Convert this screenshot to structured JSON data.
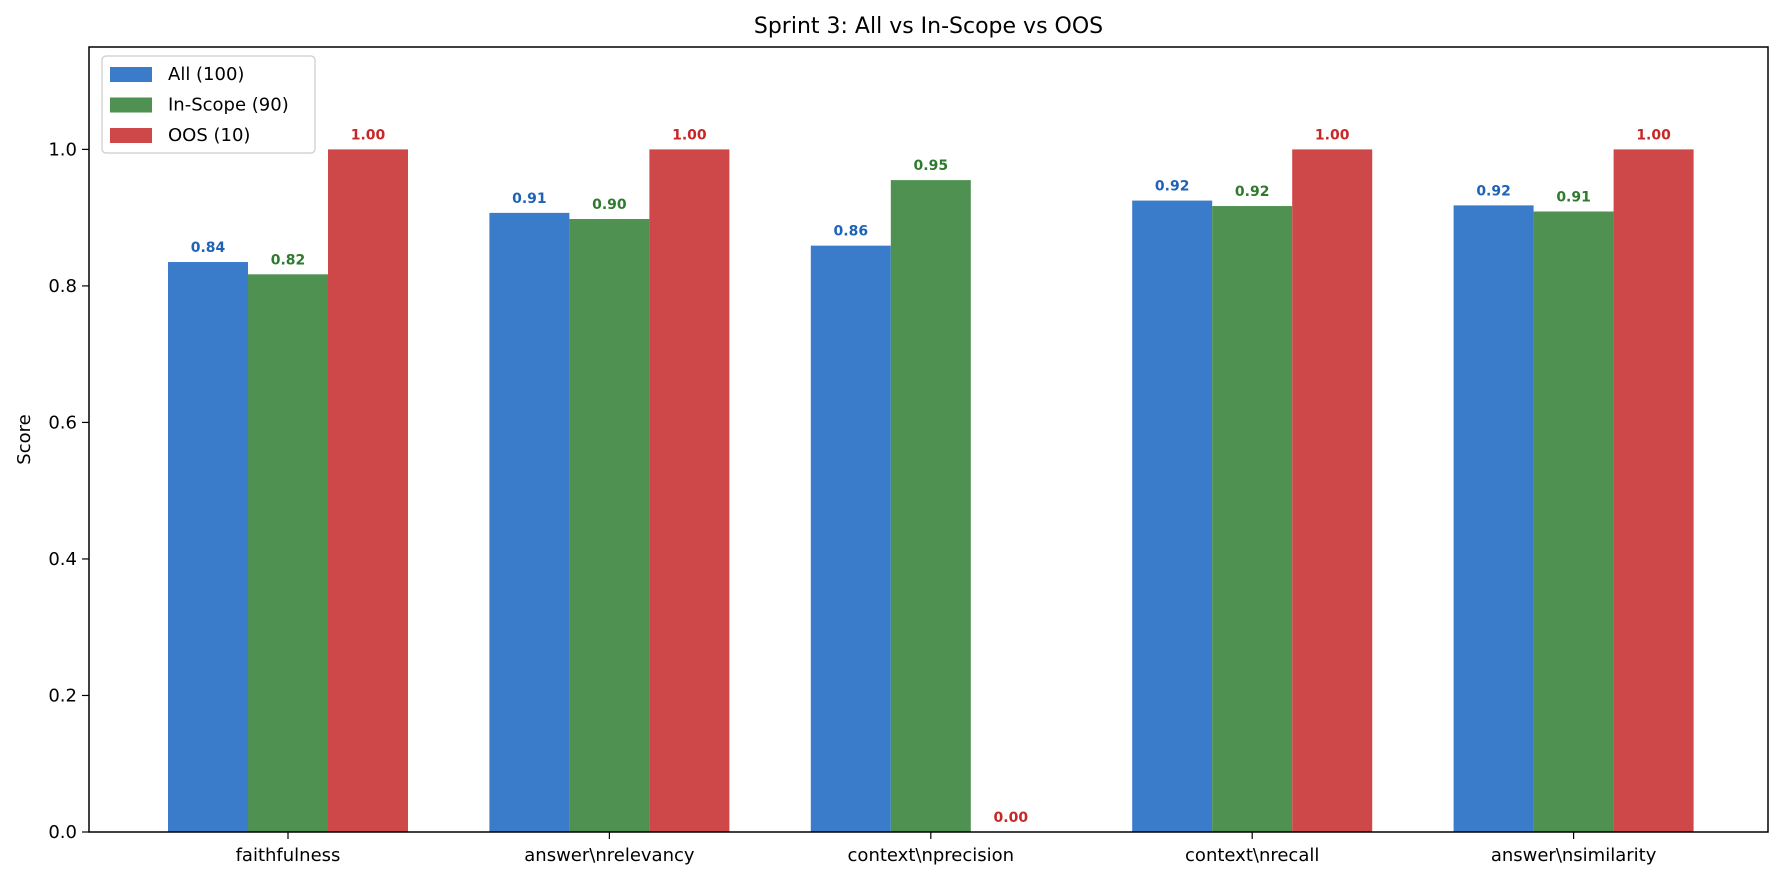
{
  "chart_data": {
    "type": "bar",
    "title": "Sprint 3: All vs In-Scope vs OOS",
    "xlabel": "",
    "ylabel": "Score",
    "ylim": [
      0,
      1.15
    ],
    "yticks": [
      "0.0",
      "0.2",
      "0.4",
      "0.6",
      "0.8",
      "1.0"
    ],
    "categories": [
      "faithfulness",
      "answer\\nrelevancy",
      "context\\nprecision",
      "context\\nrecall",
      "answer\\nsimilarity"
    ],
    "series": [
      {
        "name": "All (100)",
        "color": "#3a7cc9",
        "label_color": "#1f63b8",
        "values": [
          0.835,
          0.907,
          0.859,
          0.925,
          0.918
        ],
        "labels": [
          "0.84",
          "0.91",
          "0.86",
          "0.92",
          "0.92"
        ]
      },
      {
        "name": "In-Scope (90)",
        "color": "#4f9150",
        "label_color": "#2e7a2e",
        "values": [
          0.817,
          0.898,
          0.955,
          0.917,
          0.909
        ],
        "labels": [
          "0.82",
          "0.90",
          "0.95",
          "0.92",
          "0.91"
        ]
      },
      {
        "name": "OOS (10)",
        "color": "#cf4849",
        "label_color": "#c62828",
        "values": [
          1.0,
          1.0,
          0.0,
          1.0,
          1.0
        ],
        "labels": [
          "1.00",
          "1.00",
          "0.00",
          "1.00",
          "1.00"
        ]
      }
    ],
    "legend_position": "top-left",
    "grid": false
  }
}
